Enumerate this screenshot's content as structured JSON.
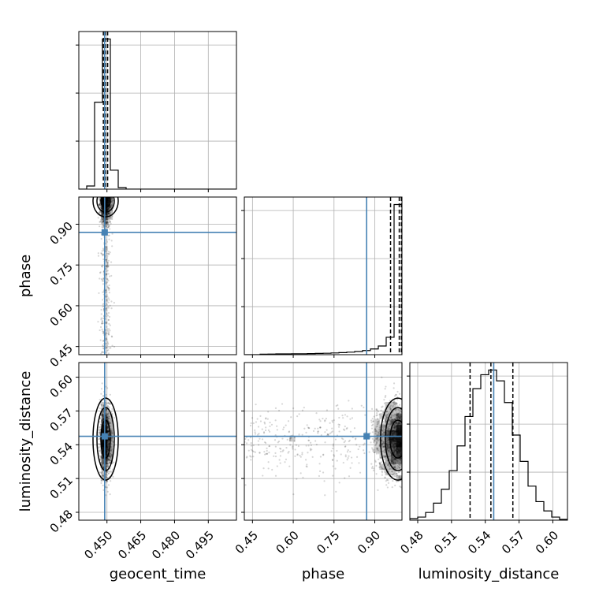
{
  "chart_data": {
    "type": "scatter",
    "plot_kind": "corner",
    "grid": true,
    "truth_color": "#4682b4",
    "contour_color": "#000000",
    "parameters": [
      {
        "name": "geocent_time",
        "label": "geocent_time",
        "range": [
          0.4375,
          0.5075
        ],
        "ticks": [
          0.45,
          0.465,
          0.48,
          0.495
        ],
        "tick_labels": [
          "0.450",
          "0.465",
          "0.480",
          "0.495"
        ],
        "truth": 0.449,
        "quantiles": [
          0.4484,
          0.4493,
          0.4503
        ],
        "hist_bin_edges": [
          0.4375,
          0.441,
          0.4445,
          0.448,
          0.4515,
          0.455,
          0.4585,
          0.462,
          0.4655,
          0.469,
          0.4725,
          0.476,
          0.4795,
          0.483,
          0.4865,
          0.49,
          0.4935,
          0.497,
          0.5005,
          0.504,
          0.5075
        ],
        "hist_counts": [
          0,
          0.02,
          0.55,
          0.95,
          0.12,
          0.01,
          0,
          0,
          0,
          0,
          0,
          0,
          0,
          0,
          0,
          0,
          0,
          0,
          0,
          0
        ]
      },
      {
        "name": "phase",
        "label": "phase",
        "range": [
          0.42,
          1.0
        ],
        "ticks": [
          0.45,
          0.6,
          0.75,
          0.9
        ],
        "tick_labels": [
          "0.45",
          "0.60",
          "0.75",
          "0.90"
        ],
        "truth": 0.87,
        "quantiles": [
          0.958,
          0.99,
          0.998
        ],
        "hist_bin_edges": [
          0.42,
          0.449,
          0.478,
          0.507,
          0.536,
          0.565,
          0.594,
          0.623,
          0.652,
          0.681,
          0.71,
          0.739,
          0.768,
          0.797,
          0.826,
          0.855,
          0.884,
          0.913,
          0.942,
          0.971,
          1.0
        ],
        "hist_counts": [
          0,
          0,
          0.003,
          0.004,
          0.005,
          0.005,
          0.006,
          0.006,
          0.007,
          0.008,
          0.009,
          0.011,
          0.013,
          0.016,
          0.02,
          0.026,
          0.036,
          0.055,
          0.11,
          0.95
        ]
      },
      {
        "name": "luminosity_distance",
        "label": "luminosity_distance",
        "range": [
          0.473,
          0.613
        ],
        "ticks": [
          0.48,
          0.51,
          0.54,
          0.57,
          0.6
        ],
        "tick_labels": [
          "0.48",
          "0.51",
          "0.54",
          "0.57",
          "0.60"
        ],
        "truth": 0.5475,
        "quantiles": [
          0.5265,
          0.545,
          0.5645
        ],
        "hist_bin_edges": [
          0.473,
          0.48,
          0.487,
          0.494,
          0.501,
          0.508,
          0.515,
          0.522,
          0.529,
          0.536,
          0.543,
          0.55,
          0.557,
          0.564,
          0.571,
          0.578,
          0.585,
          0.592,
          0.599,
          0.606,
          0.613
        ],
        "hist_counts": [
          0.01,
          0.02,
          0.05,
          0.11,
          0.2,
          0.32,
          0.48,
          0.67,
          0.85,
          0.94,
          0.97,
          0.9,
          0.76,
          0.55,
          0.38,
          0.22,
          0.12,
          0.06,
          0.02,
          0.005
        ]
      }
    ]
  }
}
